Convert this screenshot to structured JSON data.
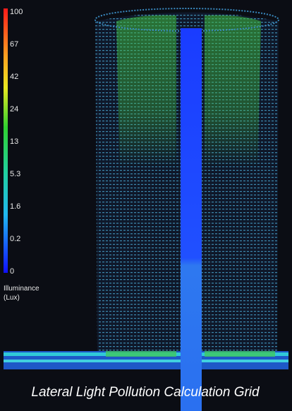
{
  "legend": {
    "ticks": [
      100,
      67,
      42,
      24,
      13,
      5.3,
      1.6,
      0.2,
      0
    ],
    "title_lines": [
      "Illuminance",
      "(Lux)"
    ]
  },
  "caption": "Lateral Light Pollution Calculation Grid"
}
